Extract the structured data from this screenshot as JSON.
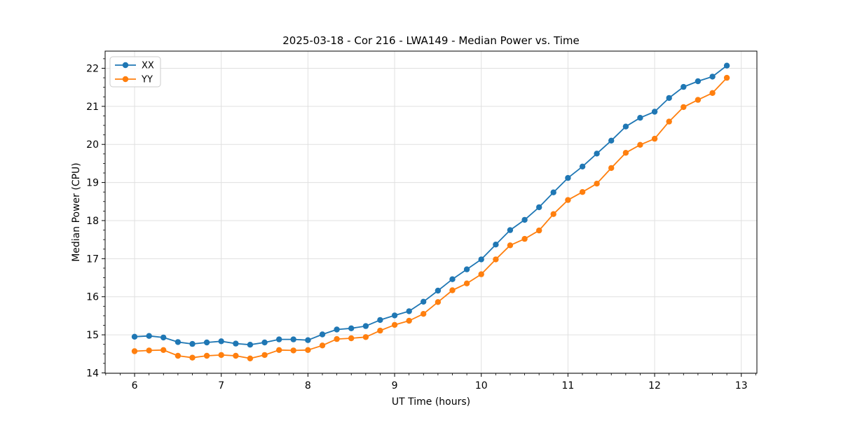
{
  "chart_data": {
    "type": "line",
    "title": "2025-03-18 - Cor 216 - LWA149 - Median Power vs. Time",
    "xlabel": "UT Time (hours)",
    "ylabel": "Median Power (CPU)",
    "xlim": [
      5.66,
      13.18
    ],
    "ylim": [
      13.99,
      22.45
    ],
    "x_major_ticks": [
      6,
      7,
      8,
      9,
      10,
      11,
      12,
      13
    ],
    "y_major_ticks": [
      14,
      15,
      16,
      17,
      18,
      19,
      20,
      21,
      22
    ],
    "x_minor_subdivisions": 6,
    "y_minor_subdivisions": 4,
    "grid": true,
    "legend_position": "upper left",
    "x": [
      6.0,
      6.167,
      6.333,
      6.5,
      6.667,
      6.833,
      7.0,
      7.167,
      7.333,
      7.5,
      7.667,
      7.833,
      8.0,
      8.167,
      8.333,
      8.5,
      8.667,
      8.833,
      9.0,
      9.167,
      9.333,
      9.5,
      9.667,
      9.833,
      10.0,
      10.167,
      10.333,
      10.5,
      10.667,
      10.833,
      11.0,
      11.167,
      11.333,
      11.5,
      11.667,
      11.833,
      12.0,
      12.167,
      12.333,
      12.5,
      12.667,
      12.833
    ],
    "series": [
      {
        "name": "XX",
        "color": "#1f77b4",
        "marker": "circle",
        "values": [
          14.95,
          14.97,
          14.93,
          14.81,
          14.76,
          14.8,
          14.83,
          14.77,
          14.74,
          14.8,
          14.88,
          14.88,
          14.86,
          15.01,
          15.14,
          15.17,
          15.23,
          15.39,
          15.51,
          15.62,
          15.87,
          16.16,
          16.46,
          16.72,
          16.98,
          17.37,
          17.75,
          18.02,
          18.35,
          18.74,
          19.12,
          19.42,
          19.76,
          20.1,
          20.47,
          20.7,
          20.86,
          21.22,
          21.51,
          21.66,
          21.78,
          22.07
        ]
      },
      {
        "name": "YY",
        "color": "#ff7f0e",
        "marker": "circle",
        "values": [
          14.57,
          14.59,
          14.6,
          14.45,
          14.4,
          14.45,
          14.47,
          14.45,
          14.38,
          14.47,
          14.6,
          14.59,
          14.6,
          14.72,
          14.89,
          14.91,
          14.94,
          15.11,
          15.26,
          15.37,
          15.55,
          15.86,
          16.17,
          16.35,
          16.59,
          16.98,
          17.35,
          17.52,
          17.74,
          18.17,
          18.54,
          18.75,
          18.97,
          19.38,
          19.78,
          19.99,
          20.15,
          20.6,
          20.98,
          21.17,
          21.35,
          21.75
        ]
      }
    ],
    "style": {
      "grid_color": "#e0e0e0",
      "spine_color": "#000000",
      "background": "#ffffff",
      "legend_border": "#cccccc"
    }
  }
}
